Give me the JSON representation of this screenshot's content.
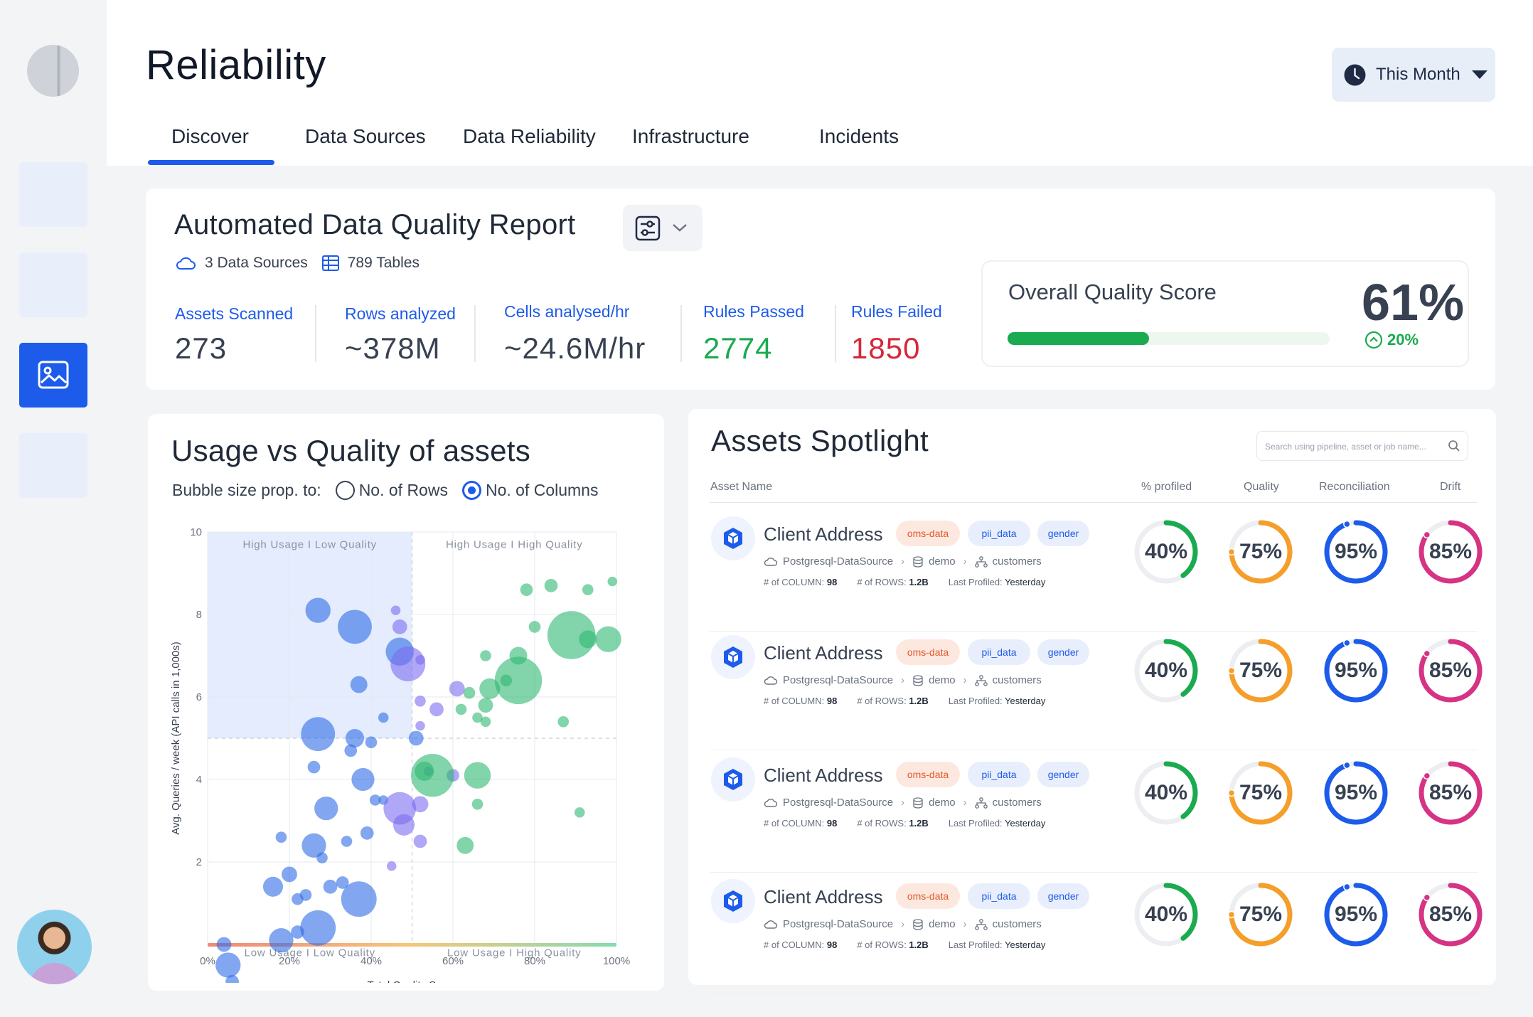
{
  "header": {
    "title": "Reliability",
    "period_label": "This Month",
    "tabs": [
      "Discover",
      "Data Sources",
      "Data Reliability",
      "Infrastructure",
      "Incidents"
    ]
  },
  "report": {
    "title": "Automated Data Quality Report",
    "sources": "3 Data Sources",
    "tables": "789 Tables",
    "stats": [
      {
        "label": "Assets Scanned",
        "value": "273"
      },
      {
        "label": "Rows analyzed",
        "value": "~378M"
      },
      {
        "label": "Cells analysed/hr",
        "value": "~24.6M/hr"
      },
      {
        "label": "Rules Passed",
        "value": "2774"
      },
      {
        "label": "Rules Failed",
        "value": "1850"
      }
    ],
    "overall": {
      "title": "Overall Quality Score",
      "value": "61%",
      "delta": "20%",
      "bar_fraction": 0.61
    }
  },
  "usage_chart": {
    "title": "Usage vs Quality of assets",
    "bubble_label": "Bubble size prop. to:",
    "options": [
      "No. of Rows",
      "No. of Columns"
    ],
    "selected_option": "No. of Columns"
  },
  "chart_data": {
    "type": "scatter",
    "xlabel": "Total Quality Score",
    "ylabel": "Avg. Queries / week (API calls in 1,000s)",
    "xlim": [
      0,
      100
    ],
    "ylim": [
      0,
      10
    ],
    "x_ticks": [
      "0%",
      "20%",
      "40%",
      "60%",
      "80%",
      "100%"
    ],
    "y_ticks": [
      "2",
      "4",
      "6",
      "8",
      "10"
    ],
    "quadrants": [
      "High Usage I Low Quality",
      "High Usage I High Quality",
      "Low Usage I Low Quality",
      "Low Usage I High Quality"
    ],
    "series": [
      {
        "color": "#2f6de6",
        "points": [
          [
            27,
            8.1,
            3.4
          ],
          [
            37,
            6.3,
            2.3
          ],
          [
            36,
            7.7,
            4.6
          ],
          [
            47,
            7.1,
            3.8
          ],
          [
            27,
            5.1,
            4.6
          ],
          [
            36,
            5,
            2.5
          ],
          [
            40,
            4.9,
            1.6
          ],
          [
            43,
            5.5,
            1.4
          ],
          [
            51,
            5,
            2
          ],
          [
            26,
            4.3,
            1.7
          ],
          [
            35,
            4.7,
            1.7
          ],
          [
            38,
            4,
            3.1
          ],
          [
            29,
            3.3,
            3.2
          ],
          [
            34,
            2.5,
            1.5
          ],
          [
            26,
            2.4,
            3.3
          ],
          [
            39,
            2.7,
            1.8
          ],
          [
            37,
            1.1,
            4.8
          ],
          [
            16,
            1.4,
            2.7
          ],
          [
            24,
            1.2,
            1.6
          ],
          [
            27,
            0.4,
            4.8
          ],
          [
            30,
            1.4,
            1.9
          ],
          [
            33,
            1.5,
            1.7
          ],
          [
            20,
            1.7,
            2.1
          ],
          [
            22,
            1.1,
            1.6
          ],
          [
            28,
            2.1,
            1.5
          ],
          [
            18,
            2.6,
            1.5
          ],
          [
            18,
            0.1,
            3.3
          ],
          [
            22,
            0.3,
            1.8
          ],
          [
            4,
            0,
            2
          ],
          [
            5,
            -0.5,
            3.4
          ],
          [
            6,
            -0.9,
            1.8
          ],
          [
            41,
            3.5,
            1.5
          ],
          [
            43,
            3.5,
            1.3
          ]
        ]
      },
      {
        "color": "#7c6cf0",
        "points": [
          [
            46,
            8.1,
            1.3
          ],
          [
            47,
            7.7,
            2
          ],
          [
            49,
            6.8,
            4.7
          ],
          [
            52,
            6.9,
            1.3
          ],
          [
            52,
            5.3,
            1.3
          ],
          [
            56,
            5.7,
            1.9
          ],
          [
            61,
            6.2,
            2.1
          ],
          [
            60,
            4.1,
            1.7
          ],
          [
            47,
            3.3,
            4.4
          ],
          [
            48,
            2.9,
            2.9
          ],
          [
            52,
            2.5,
            1.8
          ],
          [
            52,
            5.9,
            1.5
          ],
          [
            54,
            4.2,
            1.3
          ],
          [
            45,
            1.9,
            1.3
          ],
          [
            52,
            3.4,
            2.2
          ]
        ]
      },
      {
        "color": "#2eb872",
        "points": [
          [
            55,
            4.1,
            5.8
          ],
          [
            53,
            4.2,
            2.6
          ],
          [
            63,
            2.4,
            2.3
          ],
          [
            76,
            6.4,
            6.4
          ],
          [
            76,
            7,
            2.4
          ],
          [
            69,
            6.2,
            2.8
          ],
          [
            73,
            6.4,
            1.6
          ],
          [
            89,
            7.5,
            6.5
          ],
          [
            93,
            7.4,
            2.4
          ],
          [
            98,
            7.4,
            3.5
          ],
          [
            99,
            8.8,
            1.3
          ],
          [
            93,
            8.6,
            1.5
          ],
          [
            84,
            8.7,
            1.8
          ],
          [
            78,
            8.6,
            1.7
          ],
          [
            80,
            7.7,
            1.6
          ],
          [
            87,
            5.4,
            1.5
          ],
          [
            68,
            5.4,
            1.4
          ],
          [
            66,
            4.1,
            3.6
          ],
          [
            66,
            3.4,
            1.5
          ],
          [
            68,
            5.8,
            2
          ],
          [
            64,
            6.1,
            1.6
          ],
          [
            68,
            7,
            1.5
          ],
          [
            66,
            5.5,
            1.4
          ],
          [
            62,
            5.7,
            1.5
          ],
          [
            91,
            3.2,
            1.4
          ]
        ]
      }
    ]
  },
  "spotlight": {
    "title": "Assets Spotlight",
    "search_placeholder": "Search using pipeline, asset or job name...",
    "columns": [
      "Asset Name",
      "% profiled",
      "Quality",
      "Reconciliation",
      "Drift"
    ],
    "colors": {
      "profiled": "#1aaa4f",
      "quality": "#f59e2a",
      "reconciliation": "#1d5bea",
      "drift": "#d63384"
    },
    "rows": [
      {
        "name": "Client Address",
        "tags": [
          "oms-data",
          "pii_data",
          "gender"
        ],
        "source": "Postgresql-DataSource",
        "schema": "demo",
        "table": "customers",
        "columns_label": "# of COLUMN:",
        "columns": "98",
        "rows_label": "# of ROWS:",
        "rows": "1.2B",
        "profiled_label": "Last Profiled:",
        "profiled": "Yesterday",
        "metrics": {
          "profiled": "40%",
          "quality": "75%",
          "reconciliation": "95%",
          "drift": "85%"
        }
      },
      {
        "name": "Client Address",
        "tags": [
          "oms-data",
          "pii_data",
          "gender"
        ],
        "source": "Postgresql-DataSource",
        "schema": "demo",
        "table": "customers",
        "columns_label": "# of COLUMN:",
        "columns": "98",
        "rows_label": "# of ROWS:",
        "rows": "1.2B",
        "profiled_label": "Last Profiled:",
        "profiled": "Yesterday",
        "metrics": {
          "profiled": "40%",
          "quality": "75%",
          "reconciliation": "95%",
          "drift": "85%"
        }
      },
      {
        "name": "Client Address",
        "tags": [
          "oms-data",
          "pii_data",
          "gender"
        ],
        "source": "Postgresql-DataSource",
        "schema": "demo",
        "table": "customers",
        "columns_label": "# of COLUMN:",
        "columns": "98",
        "rows_label": "# of ROWS:",
        "rows": "1.2B",
        "profiled_label": "Last Profiled:",
        "profiled": "Yesterday",
        "metrics": {
          "profiled": "40%",
          "quality": "75%",
          "reconciliation": "95%",
          "drift": "85%"
        }
      },
      {
        "name": "Client Address",
        "tags": [
          "oms-data",
          "pii_data",
          "gender"
        ],
        "source": "Postgresql-DataSource",
        "schema": "demo",
        "table": "customers",
        "columns_label": "# of COLUMN:",
        "columns": "98",
        "rows_label": "# of ROWS:",
        "rows": "1.2B",
        "profiled_label": "Last Profiled:",
        "profiled": "Yesterday",
        "metrics": {
          "profiled": "40%",
          "quality": "75%",
          "reconciliation": "95%",
          "drift": "85%"
        }
      }
    ]
  }
}
